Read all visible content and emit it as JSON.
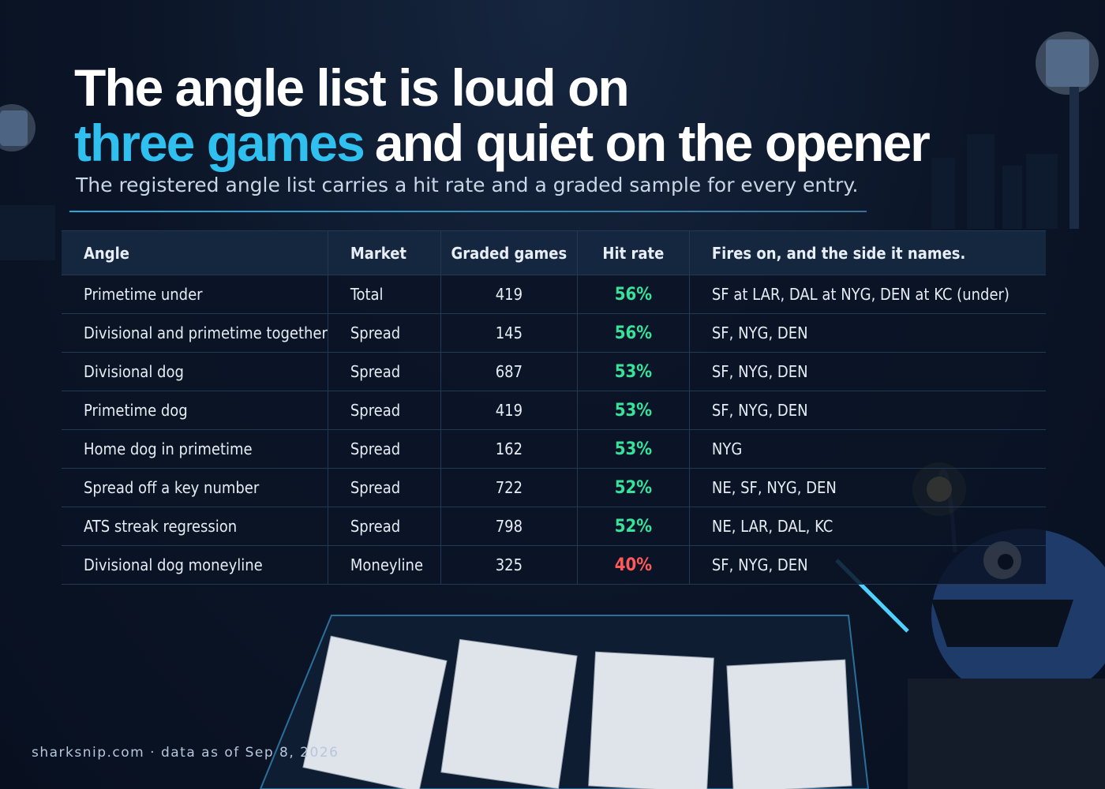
{
  "header": {
    "title_line_1": "The angle list is loud on",
    "title_highlight": "three games",
    "title_rest": "and quiet on the opener",
    "subtitle": "The registered angle list carries a hit rate and a graded sample for every entry."
  },
  "table": {
    "columns": [
      "Angle",
      "Market",
      "Graded games",
      "Hit rate",
      "Fires on, and the side it names."
    ],
    "rows": [
      [
        "Primetime under",
        "Total",
        "419",
        "56%",
        "SF at LAR, DAL at NYG, DEN at KC (under)"
      ],
      [
        "Divisional and primetime together",
        "Spread",
        "145",
        "56%",
        "SF, NYG, DEN"
      ],
      [
        "Divisional dog",
        "Spread",
        "687",
        "53%",
        "SF, NYG, DEN"
      ],
      [
        "Primetime dog",
        "Spread",
        "419",
        "53%",
        "SF, NYG, DEN"
      ],
      [
        "Home dog in primetime",
        "Spread",
        "162",
        "53%",
        "NYG"
      ],
      [
        "Spread off a key number",
        "Spread",
        "722",
        "52%",
        "NE, SF, NYG, DEN"
      ],
      [
        "ATS streak regression",
        "Spread",
        "798",
        "52%",
        "NE, LAR, DAL, KC"
      ],
      [
        "Divisional dog moneyline",
        "Moneyline",
        "325",
        "40%",
        "SF, NYG, DEN"
      ]
    ]
  },
  "footer": {
    "source": "sharksnip.com · data as of Sep 8, 2026"
  }
}
